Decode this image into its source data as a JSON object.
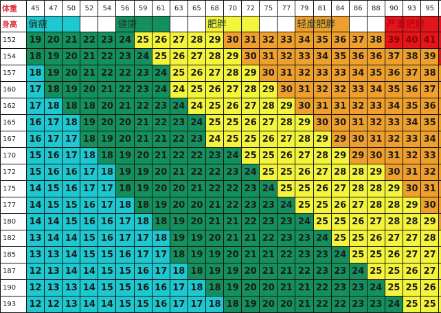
{
  "chart_data": {
    "type": "table",
    "corner_labels": {
      "weight": "体重",
      "height": "身高"
    },
    "weights": [
      45,
      47,
      50,
      52,
      54,
      56,
      59,
      61,
      63,
      65,
      68,
      70,
      72,
      75,
      77,
      79,
      81,
      84,
      86,
      88,
      90,
      93,
      95,
      97
    ],
    "legend": [
      {
        "label": "偏瘦",
        "category": "c"
      },
      {
        "label": "健康",
        "category": "g"
      },
      {
        "label": "肥胖",
        "category": "y"
      },
      {
        "label": "轻度肥胖",
        "category": "o"
      },
      {
        "label": "严重肥胖",
        "category": "r"
      }
    ],
    "legend_row": "ccc  ggg  yyy  ooo  rrrr",
    "colors": {
      "c": "#1ec8d0",
      "g": "#14905f",
      "y": "#f4f43c",
      "o": "#ef9f2c",
      "r": "#e4161b"
    },
    "rows": [
      {
        "height": 152,
        "values": [
          19,
          20,
          21,
          22,
          23,
          24,
          25,
          26,
          27,
          28,
          29,
          30,
          31,
          32,
          33,
          34,
          35,
          36,
          37,
          38,
          39,
          40,
          41,
          42
        ],
        "categories": "ggggggyyyyyooooooooorrrr"
      },
      {
        "height": 154,
        "values": [
          18,
          19,
          20,
          21,
          22,
          23,
          24,
          25,
          26,
          27,
          28,
          29,
          30,
          31,
          32,
          33,
          34,
          35,
          36,
          36,
          37,
          38,
          39,
          40
        ],
        "categories": "gggggggyyyyyooooooooooor"
      },
      {
        "height": 157,
        "values": [
          18,
          19,
          20,
          21,
          22,
          22,
          23,
          24,
          25,
          26,
          27,
          28,
          29,
          30,
          31,
          32,
          33,
          33,
          34,
          35,
          36,
          37,
          38,
          39
        ],
        "categories": "cgggggggyyyyyooooooooooo"
      },
      {
        "height": 160,
        "values": [
          17,
          18,
          19,
          20,
          21,
          22,
          23,
          24,
          24,
          25,
          26,
          27,
          28,
          29,
          30,
          31,
          32,
          32,
          33,
          34,
          35,
          36,
          37,
          38
        ],
        "categories": "cgggggggyyyyyyoooooooooo"
      },
      {
        "height": 162,
        "values": [
          17,
          18,
          18,
          18,
          20,
          21,
          22,
          23,
          24,
          24,
          25,
          26,
          27,
          28,
          29,
          30,
          31,
          31,
          32,
          33,
          34,
          35,
          36,
          37
        ],
        "categories": "ccgggggggyyyyyyooooooooo"
      },
      {
        "height": 165,
        "values": [
          16,
          17,
          18,
          19,
          20,
          20,
          21,
          22,
          23,
          24,
          25,
          25,
          26,
          27,
          28,
          29,
          30,
          30,
          31,
          32,
          33,
          34,
          35,
          35
        ],
        "categories": "cccgggggggyyyyyyoooooooo"
      },
      {
        "height": 167,
        "values": [
          16,
          17,
          17,
          18,
          19,
          20,
          21,
          21,
          22,
          23,
          24,
          25,
          25,
          26,
          27,
          28,
          29,
          29,
          30,
          31,
          32,
          33,
          34,
          34
        ],
        "categories": "cccgggggggyyyyyyyooooooo"
      },
      {
        "height": 170,
        "values": [
          15,
          16,
          17,
          18,
          18,
          19,
          20,
          21,
          22,
          22,
          23,
          24,
          25,
          25,
          26,
          27,
          28,
          29,
          29,
          30,
          31,
          32,
          33,
          33
        ],
        "categories": "ccccggggggggyyyyyyoooooo"
      },
      {
        "height": 172,
        "values": [
          15,
          16,
          16,
          17,
          18,
          19,
          19,
          20,
          21,
          22,
          22,
          23,
          24,
          25,
          25,
          26,
          27,
          28,
          28,
          29,
          30,
          31,
          32,
          32
        ],
        "categories": "cccccggggggggyyyyyyyoooo"
      },
      {
        "height": 175,
        "values": [
          14,
          15,
          16,
          17,
          17,
          18,
          19,
          20,
          20,
          21,
          22,
          22,
          23,
          24,
          25,
          25,
          26,
          27,
          28,
          28,
          29,
          30,
          31,
          31
        ],
        "categories": "cccccgggggggggyyyyyyyooo"
      },
      {
        "height": 177,
        "values": [
          14,
          15,
          15,
          16,
          17,
          18,
          18,
          19,
          20,
          20,
          21,
          22,
          23,
          23,
          24,
          25,
          25,
          26,
          27,
          28,
          28,
          29,
          30,
          30
        ],
        "categories": "ccccccgggggggggyyyyyyyoo"
      },
      {
        "height": 180,
        "values": [
          14,
          14,
          15,
          16,
          16,
          17,
          18,
          18,
          19,
          20,
          21,
          21,
          22,
          23,
          23,
          24,
          25,
          25,
          26,
          27,
          28,
          28,
          29,
          30
        ],
        "categories": "cccccccgggggggggyyyyyyyo"
      },
      {
        "height": 182,
        "values": [
          13,
          14,
          14,
          15,
          16,
          17,
          17,
          18,
          19,
          19,
          20,
          21,
          21,
          22,
          23,
          23,
          24,
          25,
          25,
          26,
          27,
          27,
          28,
          29
        ],
        "categories": "ccccccccgggggggggyyyyyyy"
      },
      {
        "height": 185,
        "values": [
          13,
          13,
          14,
          15,
          15,
          16,
          17,
          17,
          18,
          19,
          19,
          20,
          21,
          21,
          22,
          23,
          23,
          24,
          25,
          25,
          26,
          27,
          27,
          28
        ],
        "categories": "ccccccccggggggggggyyyyyy"
      },
      {
        "height": 187,
        "values": [
          12,
          13,
          14,
          14,
          15,
          15,
          16,
          17,
          18,
          18,
          19,
          19,
          20,
          21,
          21,
          22,
          23,
          23,
          24,
          25,
          25,
          26,
          27,
          27
        ],
        "categories": "cccccccccggggggggggyyyyy"
      },
      {
        "height": 190,
        "values": [
          12,
          13,
          13,
          14,
          15,
          15,
          16,
          16,
          17,
          18,
          18,
          19,
          20,
          20,
          21,
          21,
          22,
          23,
          23,
          24,
          25,
          25,
          26,
          26
        ],
        "categories": "ccccccccccggggggggggyyyy"
      },
      {
        "height": 193,
        "values": [
          12,
          12,
          13,
          14,
          14,
          15,
          15,
          16,
          17,
          17,
          18,
          18,
          19,
          20,
          20,
          21,
          22,
          22,
          23,
          23,
          24,
          25,
          25,
          26
        ],
        "categories": "cccccccccccggggggggggyyy"
      }
    ]
  }
}
